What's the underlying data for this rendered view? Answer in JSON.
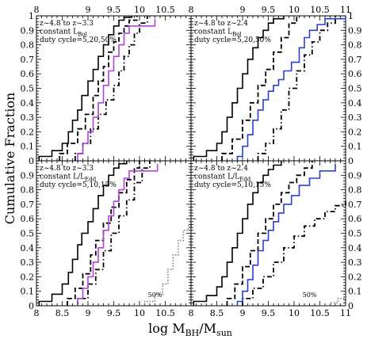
{
  "figure": {
    "ylabel": "Cumulative Fraction",
    "xlabel_main": "log M",
    "xlabel_sub1": "BH",
    "xlabel_mid": "/M",
    "xlabel_sub2": "sun"
  },
  "chart_data": [
    {
      "type": "line",
      "panel": "top-left",
      "annotation_lines": [
        {
          "main": "z~4.8 to z~3.3",
          "sub": ""
        },
        {
          "main": "constant L",
          "sub": "Bol"
        },
        {
          "main": "duty cycle=5,20,50%",
          "sub": ""
        }
      ],
      "xlim": [
        8,
        11
      ],
      "ylim": [
        0,
        1
      ],
      "x_ticks": [
        8,
        8.5,
        9,
        9.5,
        10,
        10.5,
        11
      ],
      "x_tick_labels_top": [
        "8",
        "",
        "9",
        "9.5",
        "10",
        "10.5",
        ""
      ],
      "x_tick_labels_bottom": [],
      "y_tick_labels": [
        "0",
        "0.1",
        "0.2",
        "0.3",
        "0.4",
        "0.5",
        "0.6",
        "0.7",
        "0.8",
        "0.9",
        "1"
      ],
      "series": [
        {
          "color": "#000000",
          "style": "solid",
          "x": [
            8.05,
            8.3,
            8.5,
            8.62,
            8.7,
            8.8,
            8.88,
            9.0,
            9.1,
            9.2,
            9.3,
            9.4,
            9.5,
            9.6,
            9.7,
            9.85
          ],
          "y": [
            0.03,
            0.07,
            0.12,
            0.2,
            0.28,
            0.35,
            0.45,
            0.55,
            0.63,
            0.72,
            0.8,
            0.87,
            0.93,
            0.97,
            0.99,
            1.0
          ]
        },
        {
          "color": "#000000",
          "style": "dashed",
          "x": [
            8.45,
            8.6,
            8.8,
            8.95,
            9.1,
            9.2,
            9.3,
            9.4,
            9.5,
            9.6,
            9.7,
            9.8,
            9.95
          ],
          "y": [
            0.05,
            0.12,
            0.22,
            0.32,
            0.45,
            0.55,
            0.65,
            0.75,
            0.82,
            0.88,
            0.93,
            0.97,
            1.0
          ]
        },
        {
          "color": "#000000",
          "style": "dashdot",
          "x": [
            8.75,
            8.9,
            9.05,
            9.2,
            9.35,
            9.5,
            9.6,
            9.7,
            9.8,
            9.9,
            10.0,
            10.15
          ],
          "y": [
            0.05,
            0.12,
            0.22,
            0.32,
            0.42,
            0.52,
            0.62,
            0.72,
            0.8,
            0.88,
            0.95,
            1.0
          ]
        },
        {
          "color": "#b143d8",
          "style": "solid",
          "x": [
            8.8,
            8.9,
            9.0,
            9.1,
            9.2,
            9.3,
            9.4,
            9.5,
            9.6,
            9.7,
            9.8,
            10.3
          ],
          "y": [
            0.05,
            0.12,
            0.2,
            0.3,
            0.4,
            0.52,
            0.62,
            0.72,
            0.8,
            0.88,
            0.93,
            0.98
          ]
        }
      ]
    },
    {
      "type": "line",
      "panel": "top-right",
      "annotation_lines": [
        {
          "main": "z~4.8 to z~2.4",
          "sub": ""
        },
        {
          "main": "constant L",
          "sub": "Bol"
        },
        {
          "main": "duty cycle=5,20,50%",
          "sub": ""
        }
      ],
      "xlim": [
        8,
        11
      ],
      "ylim": [
        0,
        1
      ],
      "x_ticks": [
        8,
        8.5,
        9,
        9.5,
        10,
        10.5,
        11
      ],
      "x_tick_labels_top": [
        "8",
        "",
        "9",
        "9.5",
        "10",
        "10.5",
        "11"
      ],
      "x_tick_labels_bottom": [],
      "y_tick_labels": [
        "0",
        "0.1",
        "0.2",
        "0.3",
        "0.4",
        "0.5",
        "0.6",
        "0.7",
        "0.8",
        "0.9",
        "1"
      ],
      "series": [
        {
          "color": "#000000",
          "style": "solid",
          "x": [
            8.05,
            8.3,
            8.5,
            8.6,
            8.7,
            8.8,
            8.9,
            9.0,
            9.1,
            9.2,
            9.3,
            9.4,
            9.5,
            9.6,
            9.8
          ],
          "y": [
            0.03,
            0.07,
            0.12,
            0.2,
            0.3,
            0.4,
            0.5,
            0.6,
            0.7,
            0.78,
            0.85,
            0.9,
            0.95,
            0.98,
            1.0
          ]
        },
        {
          "color": "#000000",
          "style": "dashed",
          "x": [
            8.6,
            8.8,
            9.0,
            9.15,
            9.3,
            9.45,
            9.6,
            9.75,
            9.9,
            10.05
          ],
          "y": [
            0.05,
            0.15,
            0.28,
            0.4,
            0.52,
            0.63,
            0.75,
            0.85,
            0.95,
            1.0
          ]
        },
        {
          "color": "#000000",
          "style": "dashdot",
          "x": [
            9.3,
            9.45,
            9.6,
            9.75,
            9.9,
            10.05,
            10.2,
            10.35,
            10.5,
            10.65,
            10.8
          ],
          "y": [
            0.05,
            0.12,
            0.22,
            0.35,
            0.5,
            0.62,
            0.73,
            0.82,
            0.9,
            0.95,
            1.0
          ]
        },
        {
          "color": "#2a3fd6",
          "style": "solid",
          "x": [
            8.9,
            9.0,
            9.1,
            9.2,
            9.3,
            9.4,
            9.5,
            9.6,
            9.7,
            9.8,
            9.95,
            10.1,
            10.2,
            10.3,
            10.45,
            10.6,
            11.0
          ],
          "y": [
            0.03,
            0.1,
            0.18,
            0.28,
            0.35,
            0.42,
            0.48,
            0.52,
            0.56,
            0.62,
            0.68,
            0.78,
            0.85,
            0.9,
            0.94,
            0.98,
            1.0
          ]
        }
      ]
    },
    {
      "type": "line",
      "panel": "bottom-left",
      "annotation_lines": [
        {
          "main": "z~4.8 to z~3.3",
          "sub": ""
        },
        {
          "main": "constant L/L",
          "sub": "Edd"
        },
        {
          "main": "duty cycle=5,10,15%",
          "sub": ""
        }
      ],
      "series_label": "50%",
      "xlim": [
        8,
        11
      ],
      "ylim": [
        0,
        1
      ],
      "x_ticks": [
        8,
        8.5,
        9,
        9.5,
        10,
        10.5,
        11
      ],
      "x_tick_labels_top": [],
      "x_tick_labels_bottom": [
        "8",
        "8.5",
        "9",
        "9.5",
        "10",
        "10.5",
        ""
      ],
      "y_tick_labels": [
        "0",
        "0.1",
        "0.2",
        "0.3",
        "0.4",
        "0.5",
        "0.6",
        "0.7",
        "0.8",
        "0.9",
        "1"
      ],
      "series": [
        {
          "color": "#000000",
          "style": "solid",
          "x": [
            8.05,
            8.3,
            8.5,
            8.62,
            8.7,
            8.8,
            8.88,
            9.0,
            9.1,
            9.2,
            9.3,
            9.4,
            9.5,
            9.6,
            9.75
          ],
          "y": [
            0.03,
            0.08,
            0.15,
            0.23,
            0.32,
            0.42,
            0.5,
            0.58,
            0.67,
            0.76,
            0.83,
            0.9,
            0.95,
            0.98,
            1.0
          ]
        },
        {
          "color": "#000000",
          "style": "dashed",
          "x": [
            8.6,
            8.75,
            8.9,
            9.05,
            9.15,
            9.3,
            9.45,
            9.6,
            9.75,
            9.9,
            10.0
          ],
          "y": [
            0.05,
            0.12,
            0.22,
            0.35,
            0.45,
            0.57,
            0.68,
            0.78,
            0.87,
            0.95,
            1.0
          ]
        },
        {
          "color": "#000000",
          "style": "dashdot",
          "x": [
            8.8,
            9.0,
            9.15,
            9.3,
            9.45,
            9.6,
            9.75,
            9.9,
            10.05,
            10.2
          ],
          "y": [
            0.05,
            0.15,
            0.25,
            0.38,
            0.5,
            0.62,
            0.73,
            0.85,
            0.95,
            1.0
          ]
        },
        {
          "color": "#b143d8",
          "style": "solid",
          "x": [
            8.8,
            8.9,
            9.0,
            9.1,
            9.2,
            9.3,
            9.4,
            9.5,
            9.6,
            9.7,
            9.8,
            10.35
          ],
          "y": [
            0.05,
            0.12,
            0.2,
            0.3,
            0.4,
            0.52,
            0.62,
            0.72,
            0.8,
            0.88,
            0.93,
            0.98
          ]
        },
        {
          "color": "#888888",
          "style": "dotted",
          "x": [
            9.9,
            10.1,
            10.3,
            10.45,
            10.55,
            10.65,
            10.75,
            10.85,
            10.95,
            11.0
          ],
          "y": [
            0.0,
            0.03,
            0.08,
            0.15,
            0.25,
            0.35,
            0.45,
            0.52,
            0.55,
            0.57
          ]
        }
      ]
    },
    {
      "type": "line",
      "panel": "bottom-right",
      "annotation_lines": [
        {
          "main": "z~4.8 to z~2.4",
          "sub": ""
        },
        {
          "main": "constant L/L",
          "sub": "Edd"
        },
        {
          "main": "duty cycle=5,10,15%",
          "sub": ""
        }
      ],
      "series_label": "50%",
      "xlim": [
        8,
        11
      ],
      "ylim": [
        0,
        1
      ],
      "x_ticks": [
        8,
        8.5,
        9,
        9.5,
        10,
        10.5,
        11
      ],
      "x_tick_labels_top": [],
      "x_tick_labels_bottom": [
        "8",
        "8.5",
        "9",
        "9.5",
        "10",
        "10.5",
        "11"
      ],
      "y_tick_labels": [
        "0",
        "0.1",
        "0.2",
        "0.3",
        "0.4",
        "0.5",
        "0.6",
        "0.7",
        "0.8",
        "0.9",
        "1"
      ],
      "series": [
        {
          "color": "#000000",
          "style": "solid",
          "x": [
            8.05,
            8.3,
            8.5,
            8.6,
            8.7,
            8.8,
            8.9,
            9.0,
            9.1,
            9.2,
            9.3,
            9.4,
            9.5,
            9.6,
            9.75
          ],
          "y": [
            0.03,
            0.07,
            0.13,
            0.2,
            0.3,
            0.4,
            0.5,
            0.6,
            0.7,
            0.78,
            0.85,
            0.9,
            0.94,
            0.97,
            1.0
          ]
        },
        {
          "color": "#000000",
          "style": "dashed",
          "x": [
            8.7,
            8.85,
            9.0,
            9.15,
            9.3,
            9.45,
            9.6,
            9.75,
            9.9,
            10.05,
            10.2,
            10.35
          ],
          "y": [
            0.05,
            0.15,
            0.27,
            0.38,
            0.5,
            0.6,
            0.7,
            0.78,
            0.85,
            0.9,
            0.95,
            1.0
          ]
        },
        {
          "color": "#000000",
          "style": "dashdot",
          "x": [
            9.0,
            9.2,
            9.4,
            9.6,
            9.8,
            10.0,
            10.2,
            10.4,
            10.6,
            10.8,
            11.0
          ],
          "y": [
            0.05,
            0.12,
            0.2,
            0.3,
            0.4,
            0.48,
            0.55,
            0.6,
            0.65,
            0.69,
            0.72
          ]
        },
        {
          "color": "#2a3fd6",
          "style": "solid",
          "x": [
            8.9,
            9.0,
            9.1,
            9.2,
            9.3,
            9.4,
            9.5,
            9.6,
            9.7,
            9.8,
            9.95,
            10.1,
            10.3,
            10.5,
            10.8
          ],
          "y": [
            0.03,
            0.1,
            0.18,
            0.28,
            0.38,
            0.45,
            0.52,
            0.58,
            0.64,
            0.7,
            0.76,
            0.83,
            0.88,
            0.93,
            0.98
          ]
        },
        {
          "color": "#888888",
          "style": "dotted",
          "x": [
            10.5,
            10.7,
            10.85,
            11.0
          ],
          "y": [
            0.0,
            0.02,
            0.05,
            0.08
          ]
        }
      ]
    }
  ]
}
